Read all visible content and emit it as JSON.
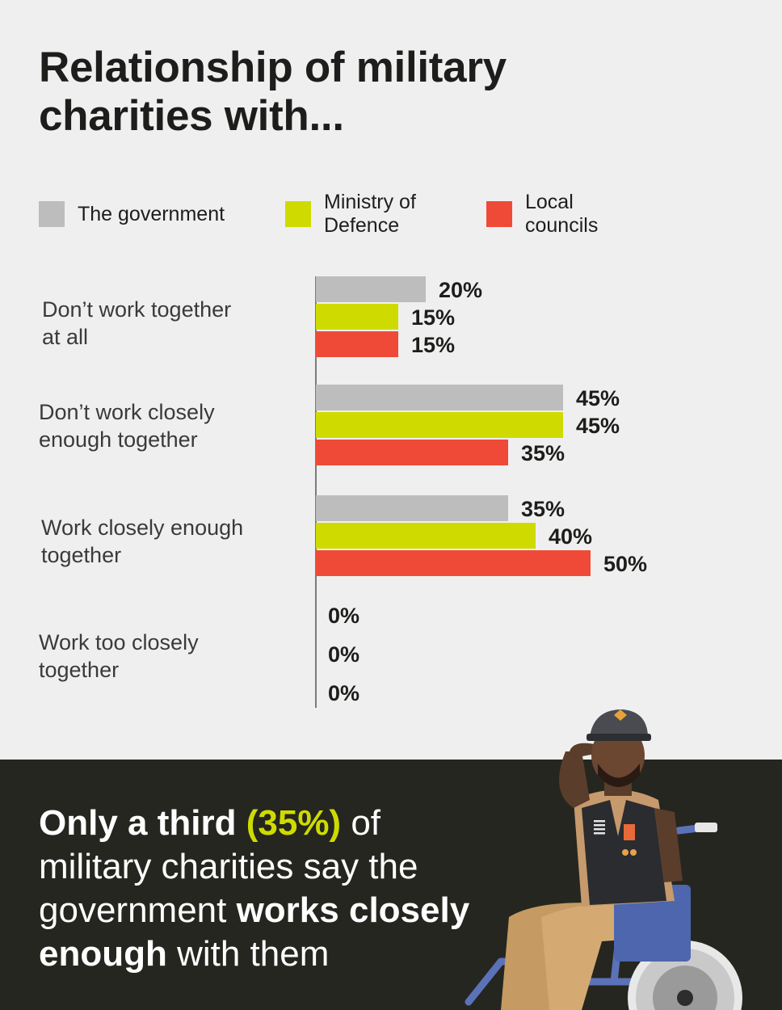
{
  "header": {
    "title": "Relationship of military charities with..."
  },
  "legend": [
    {
      "label": "The government",
      "color": "#bdbdbd"
    },
    {
      "label": "Ministry of\nDefence",
      "color": "#cfdb00"
    },
    {
      "label": "Local\ncouncils",
      "color": "#ef4a37"
    }
  ],
  "chart_data": {
    "type": "bar",
    "orientation": "horizontal",
    "title": "Relationship of military charities with...",
    "categories": [
      "Don’t work together\nat all",
      "Don’t work closely\nenough together",
      "Work closely enough\ntogether",
      "Work too closely\ntogether"
    ],
    "series": [
      {
        "name": "The government",
        "color": "#bdbdbd",
        "values": [
          20,
          45,
          35,
          0
        ]
      },
      {
        "name": "Ministry of Defence",
        "color": "#cfdb00",
        "values": [
          15,
          45,
          40,
          0
        ]
      },
      {
        "name": "Local councils",
        "color": "#ef4a37",
        "values": [
          15,
          35,
          50,
          0
        ]
      }
    ],
    "value_suffix": "%",
    "xlim": [
      0,
      50
    ],
    "grid": false,
    "legend_position": "top"
  },
  "footer": {
    "part1": "Only a third",
    "part2": "(35%)",
    "part3": " of military charities say the government ",
    "part4": "works closely enough",
    "part5": " with them"
  }
}
